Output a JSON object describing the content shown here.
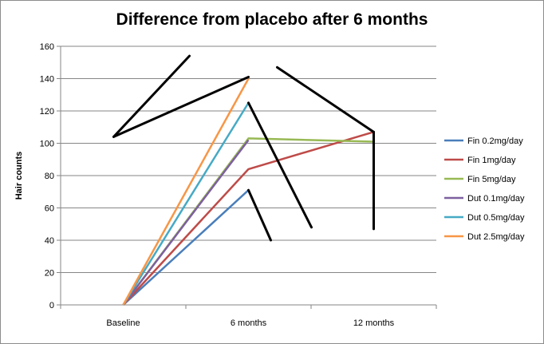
{
  "chart_data": {
    "type": "line",
    "title": "Difference from placebo after 6 months",
    "xlabel": "",
    "ylabel": "Hair counts",
    "categories": [
      "Baseline",
      "6 months",
      "12 months"
    ],
    "ylim": [
      0,
      160
    ],
    "yticks": [
      0,
      20,
      40,
      60,
      80,
      100,
      120,
      140,
      160
    ],
    "grid": true,
    "legend_position": "right",
    "series": [
      {
        "name": "Fin 0.2mg/day",
        "color": "#4a7ebb",
        "values": [
          0,
          71,
          null
        ]
      },
      {
        "name": "Fin 1mg/day",
        "color": "#be4b48",
        "values": [
          0,
          84,
          107
        ]
      },
      {
        "name": "Fin 5mg/day",
        "color": "#98b954",
        "values": [
          0,
          103,
          101
        ]
      },
      {
        "name": "Dut 0.1mg/day",
        "color": "#7d60a0",
        "values": [
          0,
          102,
          null
        ]
      },
      {
        "name": "Dut 0.5mg/day",
        "color": "#46aac5",
        "values": [
          0,
          125,
          null
        ]
      },
      {
        "name": "Dut 2.5mg/day",
        "color": "#f79646",
        "values": [
          0,
          140,
          null
        ]
      }
    ],
    "annotations": {
      "color": "#000000",
      "strokes": [
        [
          [
            "Baseline",
            104
          ],
          [
            "6 months",
            141
          ]
        ],
        [
          [
            "Baseline",
            104
          ],
          [
            "Baseline",
            155
          ]
        ]
      ]
    }
  }
}
